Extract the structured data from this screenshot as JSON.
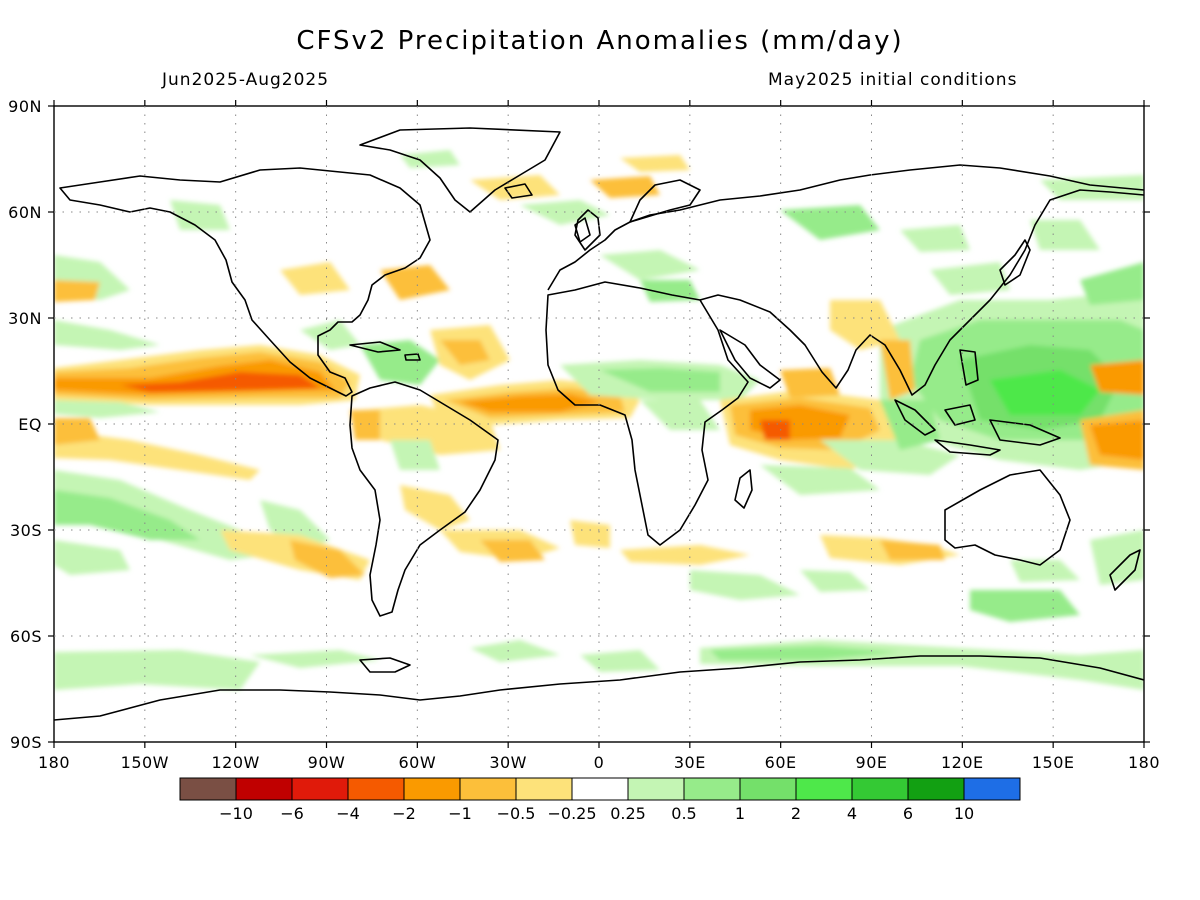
{
  "title": "CFSv2 Precipitation Anomalies (mm/day)",
  "subtitle_left": "Jun2025-Aug2025",
  "subtitle_right": "May2025 initial conditions",
  "map": {
    "projection": "equirectangular",
    "lon_range": [
      -180,
      180
    ],
    "lat_range": [
      -90,
      90
    ],
    "lon_ticks": [
      {
        "value": -180,
        "label": "180"
      },
      {
        "value": -150,
        "label": "150W"
      },
      {
        "value": -120,
        "label": "120W"
      },
      {
        "value": -90,
        "label": "90W"
      },
      {
        "value": -60,
        "label": "60W"
      },
      {
        "value": -30,
        "label": "30W"
      },
      {
        "value": 0,
        "label": "0"
      },
      {
        "value": 30,
        "label": "30E"
      },
      {
        "value": 60,
        "label": "60E"
      },
      {
        "value": 90,
        "label": "90E"
      },
      {
        "value": 120,
        "label": "120E"
      },
      {
        "value": 150,
        "label": "150E"
      },
      {
        "value": 180,
        "label": "180"
      }
    ],
    "lat_ticks": [
      {
        "value": 90,
        "label": "90N"
      },
      {
        "value": 60,
        "label": "60N"
      },
      {
        "value": 30,
        "label": "30N"
      },
      {
        "value": 0,
        "label": "EQ"
      },
      {
        "value": -30,
        "label": "30S"
      },
      {
        "value": -60,
        "label": "60S"
      },
      {
        "value": -90,
        "label": "90S"
      }
    ],
    "grid": "dotted"
  },
  "colorbar": {
    "colors": [
      "#7a4f44",
      "#c00000",
      "#e01a0a",
      "#f55a00",
      "#fa9a00",
      "#fcbf3a",
      "#fde27a",
      "#ffffff",
      "#c4f5b4",
      "#96eb8a",
      "#74e06a",
      "#4ee84a",
      "#34c934",
      "#12a012",
      "#1e6ee6"
    ],
    "labels": [
      "-10",
      "-6",
      "-4",
      "-2",
      "-1",
      "-0.5",
      "-0.25",
      "0.25",
      "0.5",
      "1",
      "2",
      "4",
      "6",
      "10"
    ]
  }
}
